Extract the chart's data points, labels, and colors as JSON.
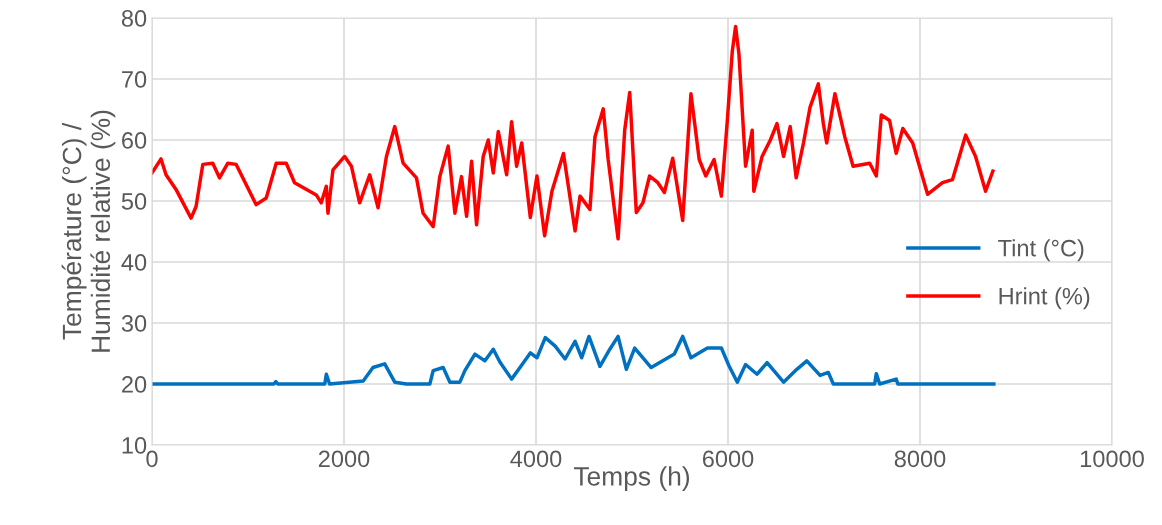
{
  "chart_data": {
    "type": "line",
    "xlabel": "Temps (h)",
    "ylabel": "Température (°C) /\nHumidité relative (%)",
    "xlim": [
      0,
      10000
    ],
    "xticks": [
      0,
      2000,
      4000,
      6000,
      8000,
      10000
    ],
    "ylim": [
      10,
      80
    ],
    "yticks": [
      10,
      20,
      30,
      40,
      50,
      60,
      70,
      80
    ],
    "grid": true,
    "legend": "right",
    "marker": "none",
    "line_style": "solid",
    "series": [
      {
        "name": "Tint (°C)",
        "color": "#0070c0",
        "x": [
          0,
          1270,
          1290,
          1310,
          1800,
          1816,
          1850,
          2200,
          2302,
          2424,
          2529,
          2650,
          2894,
          2929,
          3033,
          3103,
          3207,
          3259,
          3364,
          3468,
          3555,
          3624,
          3746,
          3833,
          3941,
          4010,
          4097,
          4200,
          4303,
          4407,
          4476,
          4552,
          4666,
          4769,
          4855,
          4941,
          5028,
          5200,
          5441,
          5528,
          5614,
          5786,
          5931,
          6010,
          6097,
          6183,
          6303,
          6407,
          6579,
          6717,
          6821,
          6959,
          7045,
          7097,
          7528,
          7545,
          7580,
          7752,
          7769,
          8769
        ],
        "values": [
          20,
          20,
          20.4,
          20,
          20,
          21.6,
          20,
          20.5,
          22.7,
          23.3,
          20.3,
          20,
          20,
          22.2,
          22.7,
          20.3,
          20.3,
          22.2,
          24.9,
          23.8,
          25.7,
          23.6,
          20.8,
          22.7,
          25.1,
          24.3,
          27.6,
          26.2,
          24.1,
          27,
          24.3,
          27.8,
          22.9,
          25.7,
          27.8,
          22.4,
          25.9,
          22.7,
          24.9,
          27.8,
          24.3,
          25.9,
          25.9,
          23,
          20.3,
          23.2,
          21.6,
          23.5,
          20.3,
          22.4,
          23.8,
          21.4,
          21.9,
          20,
          20,
          21.7,
          20,
          20.8,
          20,
          20
        ]
      },
      {
        "name": "Hrint (%)",
        "color": "#ff0000",
        "x": [
          0,
          94,
          146,
          250,
          407,
          459,
          529,
          633,
          703,
          790,
          877,
          1085,
          1190,
          1294,
          1398,
          1485,
          1711,
          1763,
          1816,
          1833,
          1885,
          2007,
          2077,
          2163,
          2268,
          2355,
          2442,
          2529,
          2616,
          2755,
          2824,
          2929,
          2998,
          3085,
          3155,
          3224,
          3277,
          3329,
          3381,
          3450,
          3503,
          3555,
          3607,
          3694,
          3746,
          3798,
          3851,
          3941,
          4010,
          4090,
          4166,
          4286,
          4407,
          4459,
          4562,
          4614,
          4700,
          4752,
          4855,
          4924,
          4976,
          5045,
          5114,
          5183,
          5269,
          5338,
          5424,
          5528,
          5614,
          5700,
          5769,
          5855,
          5931,
          5993,
          6045,
          6079,
          6114,
          6183,
          6252,
          6269,
          6355,
          6441,
          6510,
          6579,
          6648,
          6710,
          6786,
          6855,
          6941,
          6993,
          7028,
          7114,
          7217,
          7303,
          7476,
          7545,
          7597,
          7683,
          7752,
          7821,
          7924,
          8079,
          8234,
          8338,
          8476,
          8579,
          8683,
          8759
        ],
        "values": [
          54.6,
          56.9,
          54.3,
          51.9,
          47.2,
          49.1,
          56,
          56.2,
          53.8,
          56.2,
          56,
          49.4,
          50.5,
          56.2,
          56.2,
          53,
          51,
          49.7,
          52.4,
          48,
          55.1,
          57.3,
          55.7,
          49.7,
          54.3,
          48.9,
          57.3,
          62.2,
          56.2,
          53.8,
          48,
          45.8,
          54,
          59,
          48,
          54,
          47.5,
          56.5,
          46.1,
          57.3,
          60,
          54.6,
          61.4,
          54.3,
          63,
          55.7,
          59.5,
          47.3,
          54.1,
          44.3,
          51.6,
          57.8,
          45.1,
          50.8,
          48.6,
          60.5,
          65.1,
          56.8,
          43.8,
          61.6,
          67.8,
          48.1,
          49.7,
          54.1,
          53,
          51.4,
          57,
          46.8,
          67.6,
          56.8,
          54.1,
          56.8,
          50.8,
          63.2,
          74.6,
          78.6,
          74.1,
          55.7,
          61.6,
          51.6,
          57.3,
          60,
          62.7,
          57.3,
          62.2,
          53.8,
          59.5,
          65.4,
          69.2,
          62.7,
          59.5,
          67.6,
          60.5,
          55.7,
          56.2,
          54.1,
          64.1,
          63.2,
          57.8,
          61.9,
          59.5,
          51.1,
          53,
          53.5,
          60.8,
          57.3,
          51.6,
          54.9
        ]
      }
    ]
  }
}
